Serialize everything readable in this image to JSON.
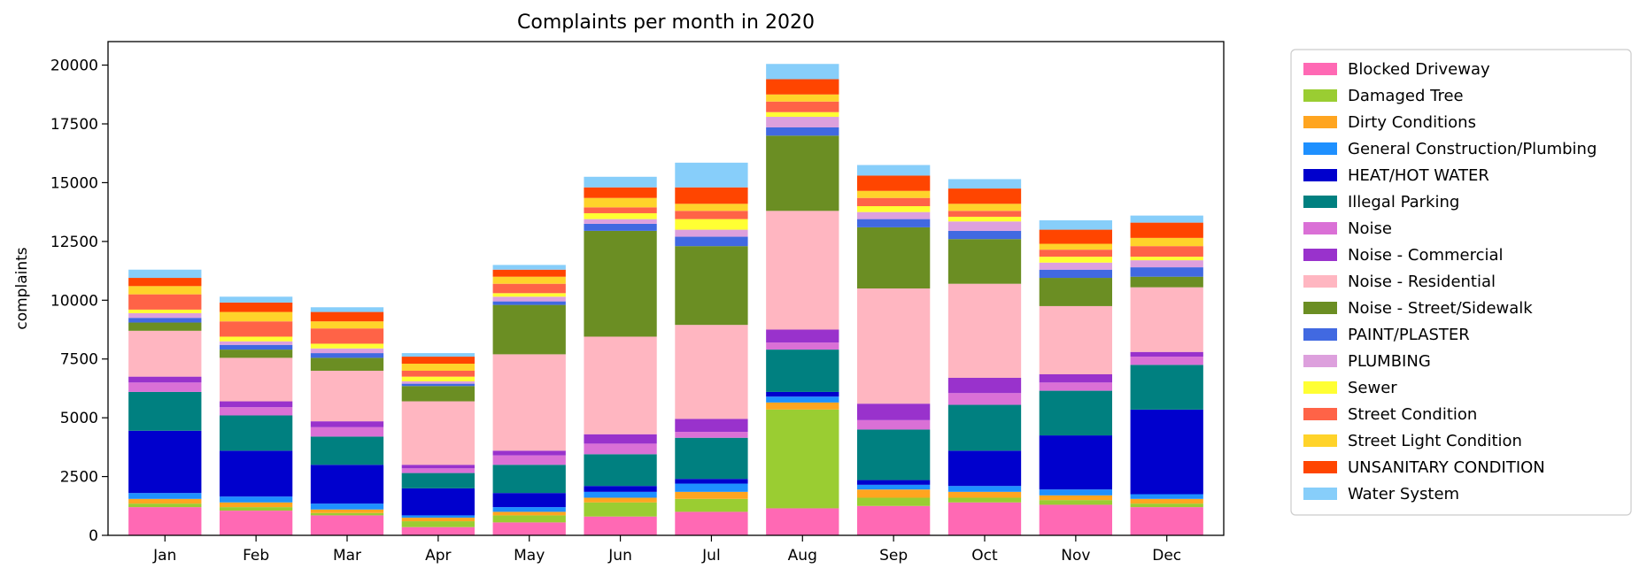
{
  "chart_data": {
    "type": "bar",
    "stacked": true,
    "title": "Complaints per month in 2020",
    "xlabel": "",
    "ylabel": "complaints",
    "ylim": [
      0,
      21000
    ],
    "yticks": [
      0,
      2500,
      5000,
      7500,
      10000,
      12500,
      15000,
      17500,
      20000
    ],
    "ytick_labels": [
      "0",
      "2500",
      "5000",
      "7500",
      "10000",
      "12500",
      "15000",
      "17500",
      "20000"
    ],
    "grid": false,
    "legend_position": "outside-right",
    "categories": [
      "Jan",
      "Feb",
      "Mar",
      "Apr",
      "May",
      "Jun",
      "Jul",
      "Aug",
      "Sep",
      "Oct",
      "Nov",
      "Dec"
    ],
    "series": [
      {
        "name": "Blocked Driveway",
        "color": "#ff69b4",
        "values": [
          1200,
          1050,
          850,
          350,
          550,
          800,
          1000,
          1150,
          1250,
          1400,
          1300,
          1200
        ]
      },
      {
        "name": "Damaged Tree",
        "color": "#9acd32",
        "values": [
          150,
          150,
          100,
          250,
          300,
          600,
          550,
          4200,
          350,
          200,
          200,
          150
        ]
      },
      {
        "name": "Dirty Conditions",
        "color": "#ffa520",
        "values": [
          200,
          200,
          150,
          150,
          150,
          200,
          300,
          300,
          350,
          250,
          200,
          200
        ]
      },
      {
        "name": "General Construction/Plumbing",
        "color": "#1e90ff",
        "values": [
          250,
          250,
          250,
          100,
          200,
          250,
          350,
          250,
          200,
          250,
          250,
          200
        ]
      },
      {
        "name": "HEAT/HOT WATER",
        "color": "#0000cd",
        "values": [
          2650,
          1950,
          1650,
          1150,
          600,
          250,
          200,
          200,
          200,
          1500,
          2300,
          3600
        ]
      },
      {
        "name": "Illegal Parking",
        "color": "#008080",
        "values": [
          1650,
          1500,
          1200,
          650,
          1200,
          1350,
          1750,
          1800,
          2150,
          1950,
          1900,
          1900
        ]
      },
      {
        "name": "Noise",
        "color": "#da70d6",
        "values": [
          400,
          350,
          400,
          200,
          400,
          450,
          250,
          300,
          400,
          500,
          350,
          350
        ]
      },
      {
        "name": "Noise - Commercial",
        "color": "#9932cc",
        "values": [
          250,
          250,
          250,
          150,
          200,
          400,
          550,
          550,
          700,
          650,
          350,
          200
        ]
      },
      {
        "name": "Noise - Residential",
        "color": "#ffb6c1",
        "values": [
          1950,
          1850,
          2150,
          2700,
          4100,
          4150,
          4000,
          5050,
          4900,
          4000,
          2900,
          2750
        ]
      },
      {
        "name": "Noise - Street/Sidewalk",
        "color": "#6b8e23",
        "values": [
          350,
          350,
          550,
          650,
          2100,
          4500,
          3350,
          3200,
          2600,
          1900,
          1200,
          450
        ]
      },
      {
        "name": "PAINT/PLASTER",
        "color": "#4169e1",
        "values": [
          200,
          200,
          200,
          100,
          150,
          300,
          400,
          350,
          350,
          350,
          350,
          400
        ]
      },
      {
        "name": "PLUMBING",
        "color": "#dda0dd",
        "values": [
          200,
          150,
          200,
          100,
          200,
          200,
          300,
          450,
          300,
          400,
          300,
          300
        ]
      },
      {
        "name": "Sewer",
        "color": "#ffff33",
        "values": [
          150,
          200,
          200,
          200,
          150,
          250,
          450,
          200,
          250,
          200,
          250,
          150
        ]
      },
      {
        "name": "Street Condition",
        "color": "#ff6347",
        "values": [
          650,
          650,
          650,
          250,
          400,
          250,
          350,
          450,
          350,
          250,
          300,
          450
        ]
      },
      {
        "name": "Street Light Condition",
        "color": "#ffd32a",
        "values": [
          350,
          400,
          300,
          300,
          300,
          400,
          300,
          300,
          300,
          300,
          250,
          350
        ]
      },
      {
        "name": "UNSANITARY CONDITION",
        "color": "#ff4500",
        "values": [
          350,
          400,
          400,
          300,
          300,
          450,
          700,
          650,
          650,
          650,
          600,
          650
        ]
      },
      {
        "name": "Water System",
        "color": "#87cefa",
        "values": [
          350,
          250,
          200,
          150,
          200,
          450,
          1050,
          650,
          450,
          400,
          400,
          300
        ]
      }
    ]
  }
}
